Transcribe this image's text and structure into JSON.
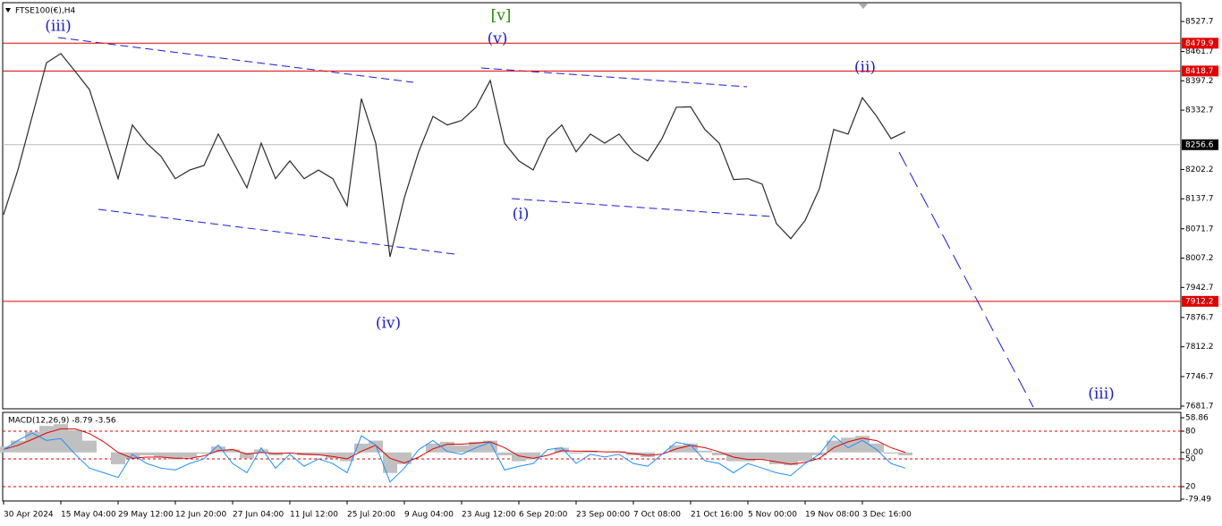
{
  "chart_data": [
    {
      "type": "line",
      "title": "FTSE100(€),H4",
      "categories": [
        "30 Apr 2024",
        null,
        null,
        null,
        "15 May 04:00",
        null,
        null,
        null,
        "29 May 12:00",
        null,
        null,
        null,
        "12 Jun 20:00",
        null,
        null,
        null,
        "27 Jun 04:00",
        null,
        null,
        null,
        "11 Jul 12:00",
        null,
        null,
        null,
        "25 Jul 20:00",
        null,
        null,
        null,
        "9 Aug 04:00",
        null,
        null,
        null,
        "23 Aug 12:00",
        null,
        null,
        null,
        "6 Sep 20:00",
        null,
        null,
        null,
        "23 Sep 00:00",
        null,
        null,
        null,
        "7 Oct 08:00",
        null,
        null,
        null,
        "21 Oct 16:00",
        null,
        null,
        null,
        "5 Nov 00:00",
        null,
        null,
        null,
        "19 Nov 08:00",
        null,
        null,
        null,
        "3 Dec 16:00",
        null,
        null,
        null
      ],
      "series": [
        {
          "name": "FTSE100(€),H4",
          "color": "#2b2b2b",
          "values": [
            8103,
            8201,
            8319,
            8437,
            8457,
            8418,
            8378,
            8280,
            8182,
            8300,
            8260,
            8231,
            8182,
            8201,
            8211,
            8280,
            8221,
            8162,
            8260,
            8182,
            8221,
            8182,
            8201,
            8182,
            8122,
            8358,
            8260,
            8010,
            8140,
            8241,
            8319,
            8300,
            8310,
            8339,
            8398,
            8260,
            8221,
            8201,
            8270,
            8300,
            8241,
            8280,
            8260,
            8280,
            8241,
            8221,
            8270,
            8339,
            8340,
            8290,
            8260,
            8180,
            8182,
            8170,
            8083,
            8050,
            8090,
            8160,
            8290,
            8280,
            8360,
            8319,
            8270,
            8285
          ]
        }
      ],
      "ylim": [
        7675.8,
        8569.0
      ],
      "yticks": [
        8527.7,
        8461.7,
        8397.2,
        8332.7,
        8202.2,
        8137.7,
        8071.7,
        8007.2,
        7942.7,
        7876.7,
        7812.2,
        7746.7,
        7681.7
      ],
      "levels": [
        8479.9,
        8418.7,
        7912.2
      ],
      "level_color": "#e00000",
      "last_price": 8256.6,
      "annotations": [
        "[v]",
        "(iii)",
        "(v)",
        "(ii)",
        "(i)",
        "(iv)",
        "(iii)"
      ]
    },
    {
      "type": "macd",
      "title": "MACD(12,26,9) -8.79 -3.56",
      "series": [
        {
          "name": "MACD",
          "color": "#c0c0c0",
          "values": [
            10,
            20,
            35,
            45,
            48,
            38,
            20,
            0,
            -20,
            -10,
            -5,
            -8,
            -12,
            -8,
            -2,
            10,
            5,
            -10,
            5,
            -5,
            0,
            -5,
            -5,
            -10,
            -15,
            15,
            20,
            -35,
            -20,
            0,
            15,
            18,
            12,
            18,
            20,
            -5,
            -15,
            -12,
            0,
            8,
            -2,
            3,
            0,
            2,
            -5,
            -8,
            0,
            12,
            15,
            3,
            -5,
            -15,
            -15,
            -12,
            -20,
            -22,
            -15,
            -5,
            20,
            25,
            28,
            15,
            -2,
            -5
          ]
        },
        {
          "name": "Signal",
          "color": "#e00000",
          "values": [
            5,
            12,
            22,
            33,
            40,
            40,
            32,
            18,
            0,
            -10,
            -8,
            -8,
            -10,
            -10,
            -6,
            3,
            5,
            -3,
            0,
            -2,
            -1,
            -3,
            -4,
            -7,
            -11,
            2,
            12,
            -10,
            -18,
            -8,
            6,
            14,
            14,
            16,
            18,
            8,
            -6,
            -10,
            -5,
            3,
            2,
            2,
            1,
            1,
            -2,
            -5,
            -3,
            6,
            12,
            8,
            1,
            -8,
            -12,
            -12,
            -16,
            -20,
            -17,
            -10,
            8,
            18,
            24,
            20,
            8,
            0
          ]
        },
        {
          "name": "Oscillator",
          "color": "#1e90ff",
          "axis": "y2",
          "values": [
            60,
            70,
            78,
            70,
            72,
            55,
            40,
            35,
            30,
            55,
            45,
            40,
            38,
            45,
            50,
            65,
            45,
            35,
            62,
            40,
            55,
            42,
            50,
            45,
            35,
            75,
            65,
            25,
            40,
            60,
            70,
            58,
            55,
            62,
            68,
            38,
            42,
            45,
            60,
            62,
            45,
            55,
            52,
            55,
            45,
            42,
            55,
            68,
            65,
            48,
            45,
            35,
            45,
            40,
            35,
            32,
            45,
            55,
            75,
            62,
            70,
            60,
            45,
            40
          ]
        }
      ],
      "ylim": [
        -82.5,
        68.0
      ],
      "yticks": [
        58.86,
        {
          "value": 0,
          "label": "0.00"
        },
        -79.49
      ],
      "y2lim": [
        4.5,
        100.3
      ],
      "y2ticks": [
        80,
        50,
        20
      ]
    }
  ]
}
